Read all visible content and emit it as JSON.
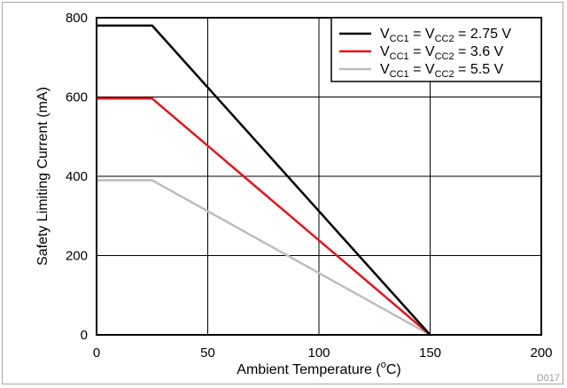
{
  "chart_data": {
    "type": "line",
    "xlabel": "Ambient Temperature (",
    "xlabel_sup": "o",
    "xlabel_end": "C)",
    "ylabel": "Safety Limiting Current (mA)",
    "xlim": [
      0,
      200
    ],
    "ylim": [
      0,
      800
    ],
    "xticks": [
      0,
      50,
      100,
      150,
      200
    ],
    "yticks": [
      0,
      200,
      400,
      600,
      800
    ],
    "grid": true,
    "legend_position": "top-right",
    "series": [
      {
        "label_parts": [
          "V",
          "CC1",
          " = V",
          "CC2",
          " = 2.75 V"
        ],
        "color": "#000000",
        "points": [
          [
            0,
            780
          ],
          [
            25,
            780
          ],
          [
            150,
            0
          ]
        ]
      },
      {
        "label_parts": [
          "V",
          "CC1",
          " = V",
          "CC2",
          " = 3.6 V"
        ],
        "color": "#e8141a",
        "points": [
          [
            0,
            596
          ],
          [
            25,
            596
          ],
          [
            150,
            0
          ]
        ]
      },
      {
        "label_parts": [
          "V",
          "CC1",
          " = V",
          "CC2",
          " = 5.5 V"
        ],
        "color": "#bdbdbd",
        "points": [
          [
            0,
            390
          ],
          [
            25,
            390
          ],
          [
            150,
            0
          ]
        ]
      }
    ],
    "code": "D017"
  }
}
